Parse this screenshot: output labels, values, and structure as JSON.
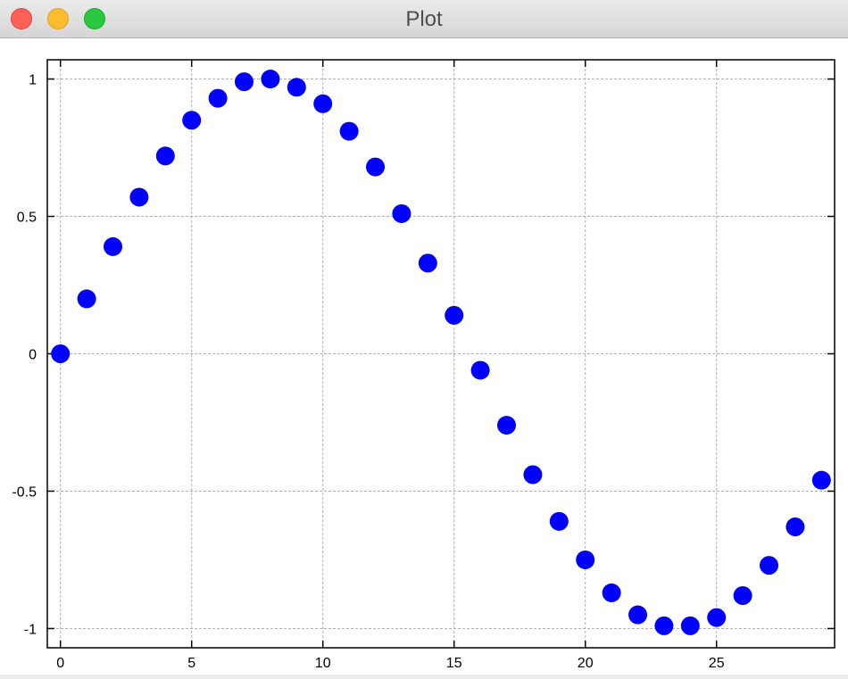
{
  "window": {
    "title": "Plot"
  },
  "chart_data": {
    "type": "scatter",
    "title": "",
    "xlabel": "",
    "ylabel": "",
    "xlim": [
      -0.5,
      29.5
    ],
    "ylim": [
      -1.07,
      1.07
    ],
    "xticks": [
      0,
      5,
      10,
      15,
      20,
      25
    ],
    "xtick_labels": [
      "0",
      "5",
      "10",
      "15",
      "20",
      "25"
    ],
    "yticks": [
      1,
      0.5,
      0,
      -0.5,
      -1
    ],
    "ytick_labels": [
      "1",
      "0.5",
      "0",
      "-0.5",
      "-1"
    ],
    "grid": true,
    "marker_color": "#0000ff",
    "series": [
      {
        "x": [
          0,
          1,
          2,
          3,
          4,
          5,
          6,
          7,
          8,
          9,
          10,
          11,
          12,
          13,
          14,
          15,
          16,
          17,
          18,
          19,
          20,
          21,
          22,
          23,
          24,
          25,
          26,
          27,
          28,
          29
        ],
        "y": [
          0,
          0.2,
          0.39,
          0.57,
          0.72,
          0.85,
          0.93,
          0.99,
          1.0,
          0.97,
          0.91,
          0.81,
          0.68,
          0.51,
          0.33,
          0.14,
          -0.06,
          -0.26,
          -0.44,
          -0.61,
          -0.75,
          -0.87,
          -0.95,
          -0.99,
          -0.99,
          -0.96,
          -0.88,
          -0.77,
          -0.63,
          -0.46
        ]
      }
    ]
  }
}
